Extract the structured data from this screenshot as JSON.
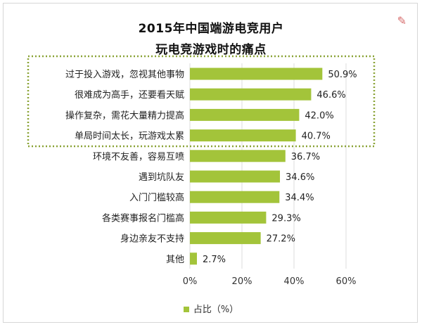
{
  "chart_data": {
    "type": "bar",
    "orientation": "horizontal",
    "title": "2015年中国端游电竞用户",
    "subtitle": "玩电竞游戏时的痛点",
    "categories": [
      "过于投入游戏，忽视其他事物",
      "很难成为高手，还要看天赋",
      "操作复杂，需花大量精力提高",
      "单局时间太长，玩游戏太累",
      "环境不友善，容易互喷",
      "遇到坑队友",
      "入门门槛较高",
      "各类赛事报名门槛高",
      "身边亲友不支持",
      "其他"
    ],
    "value_labels": [
      "50.9%",
      "46.6%",
      "42.0%",
      "40.7%",
      "36.7%",
      "34.6%",
      "34.4%",
      "29.3%",
      "27.2%",
      "2.7%"
    ],
    "series": [
      {
        "name": "占比（%）",
        "values": [
          50.9,
          46.6,
          42.0,
          40.7,
          36.7,
          34.6,
          34.4,
          29.3,
          27.2,
          2.7
        ]
      }
    ],
    "xlim": [
      0,
      60
    ],
    "x_ticks": [
      "0%",
      "20%",
      "40%",
      "60%"
    ],
    "grid": true,
    "legend_position": "bottom",
    "highlight": "top-4 items outlined with dashed box",
    "colors": {
      "bar": "#a3c43a",
      "grid": "#dcdcdc",
      "highlight_border": "#8aa336"
    }
  },
  "legend": {
    "label": "占比（%）"
  },
  "decoration": {
    "icon": "watermark-icon"
  }
}
